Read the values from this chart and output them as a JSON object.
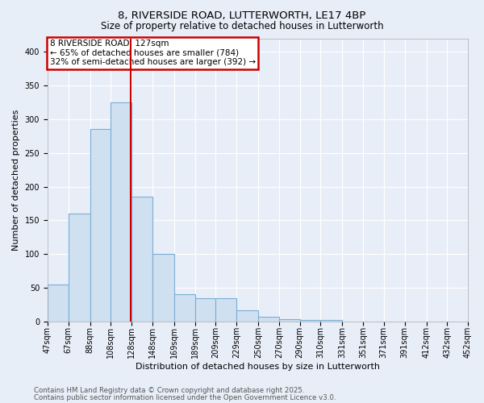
{
  "title1": "8, RIVERSIDE ROAD, LUTTERWORTH, LE17 4BP",
  "title2": "Size of property relative to detached houses in Lutterworth",
  "xlabel": "Distribution of detached houses by size in Lutterworth",
  "ylabel": "Number of detached properties",
  "bin_labels": [
    "47sqm",
    "67sqm",
    "88sqm",
    "108sqm",
    "128sqm",
    "148sqm",
    "169sqm",
    "189sqm",
    "209sqm",
    "229sqm",
    "250sqm",
    "270sqm",
    "290sqm",
    "310sqm",
    "331sqm",
    "351sqm",
    "371sqm",
    "391sqm",
    "412sqm",
    "432sqm",
    "452sqm"
  ],
  "bin_edges": [
    47,
    67,
    88,
    108,
    128,
    148,
    169,
    189,
    209,
    229,
    250,
    270,
    290,
    310,
    331,
    351,
    371,
    391,
    412,
    432,
    452
  ],
  "bar_heights": [
    55,
    160,
    285,
    325,
    185,
    100,
    40,
    35,
    35,
    17,
    7,
    3,
    2,
    2,
    0,
    0,
    0,
    0,
    0,
    0,
    2
  ],
  "bar_color": "#cfe0f0",
  "bar_edge_color": "#7aafd4",
  "vline_x": 127,
  "vline_color": "#cc0000",
  "annotation_text": "8 RIVERSIDE ROAD: 127sqm\n← 65% of detached houses are smaller (784)\n32% of semi-detached houses are larger (392) →",
  "annotation_box_color": "#cc0000",
  "ylim": [
    0,
    420
  ],
  "yticks": [
    0,
    50,
    100,
    150,
    200,
    250,
    300,
    350,
    400
  ],
  "footer1": "Contains HM Land Registry data © Crown copyright and database right 2025.",
  "footer2": "Contains public sector information licensed under the Open Government Licence v3.0.",
  "bg_color": "#e8eef8",
  "plot_bg_color": "#e8eef8",
  "title_fontsize": 9.5,
  "subtitle_fontsize": 8.5,
  "axis_label_fontsize": 8,
  "tick_fontsize": 7,
  "footer_fontsize": 6.2,
  "ann_fontsize": 7.5
}
